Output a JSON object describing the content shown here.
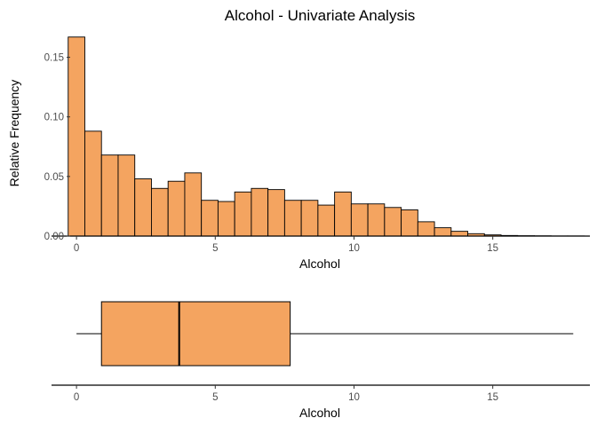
{
  "chart_data": [
    {
      "type": "bar",
      "subtype": "histogram",
      "title": "Alcohol - Univariate Analysis",
      "xlabel": "Alcohol",
      "ylabel": "Relative Frequency",
      "xlim": [
        -0.9,
        18.5
      ],
      "ylim": [
        0,
        0.172
      ],
      "x_ticks": [
        0,
        5,
        10,
        15
      ],
      "y_ticks": [
        0.0,
        0.05,
        0.1,
        0.15
      ],
      "y_tick_labels": [
        "0.00",
        "0.05",
        "0.10",
        "0.15"
      ],
      "bin_width": 0.6,
      "bin_start": -0.3,
      "values": [
        0.167,
        0.088,
        0.068,
        0.068,
        0.048,
        0.04,
        0.046,
        0.053,
        0.03,
        0.029,
        0.037,
        0.04,
        0.039,
        0.03,
        0.03,
        0.026,
        0.037,
        0.027,
        0.027,
        0.024,
        0.022,
        0.012,
        0.007,
        0.004,
        0.002,
        0.001,
        0.0005,
        0.0003,
        0.0002,
        0.0001,
        0.0001
      ],
      "fill_color": "#f4a460",
      "stroke_color": "#000000",
      "grid": false
    },
    {
      "type": "boxplot",
      "orientation": "horizontal",
      "xlabel": "Alcohol",
      "xlim": [
        -0.9,
        18.5
      ],
      "x_ticks": [
        0,
        5,
        10,
        15
      ],
      "min": 0.0,
      "q1": 0.9,
      "median": 3.7,
      "q3": 7.7,
      "max": 17.9,
      "fill_color": "#f4a460",
      "stroke_color": "#000000",
      "grid": false
    }
  ]
}
